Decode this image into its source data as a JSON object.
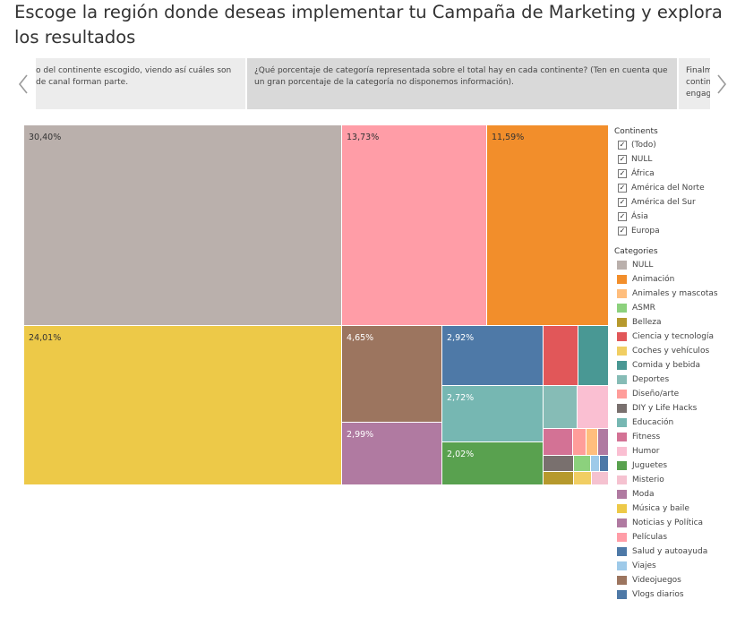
{
  "page": {
    "title": "Escoge la región donde deseas implementar tu Campaña de Marketing y explora los resultados"
  },
  "story": {
    "points": [
      {
        "text": "o del continente escogido, viendo así cuáles son\nde canal forman parte."
      },
      {
        "text": "¿Qué porcentaje de categoría representada sobre el total hay en cada continente? (Ten en cuenta que un gran porcentaje de la categoría no disponemos información)."
      },
      {
        "text": "Finalm\ncontin\nengage"
      }
    ]
  },
  "treemap": {
    "tiles": [
      {
        "name": "NULL",
        "label": "30,40%",
        "color": "#bab0ac",
        "text": "dark"
      },
      {
        "name": "Películas",
        "label": "13,73%",
        "color": "#ff9da7",
        "text": "dark"
      },
      {
        "name": "Animación",
        "label": "11,59%",
        "color": "#f28e2b",
        "text": "dark"
      },
      {
        "name": "Música y baile",
        "label": "24,01%",
        "color": "#edc948",
        "text": "dark"
      },
      {
        "name": "Videojuegos",
        "label": "4,65%",
        "color": "#9c755f",
        "text": "light"
      },
      {
        "name": "Noticias y Política",
        "label": "2,99%",
        "color": "#b07aa1",
        "text": "light"
      },
      {
        "name": "Salud y autoayuda",
        "label": "2,92%",
        "color": "#4e79a7",
        "text": "light"
      },
      {
        "name": "Educación",
        "label": "2,72%",
        "color": "#76b7b2",
        "text": "light"
      },
      {
        "name": "Juguetes",
        "label": "2,02%",
        "color": "#59a14f",
        "text": "light"
      },
      {
        "name": "Ciencia y tecnología",
        "label": "",
        "color": "#e15759",
        "text": "light"
      },
      {
        "name": "Comida y bebida",
        "label": "",
        "color": "#499894",
        "text": "light"
      },
      {
        "name": "Deportes",
        "label": "",
        "color": "#86bcb6",
        "text": "light"
      },
      {
        "name": "Humor",
        "label": "",
        "color": "#fabfd2",
        "text": "light"
      },
      {
        "name": "Fitness",
        "label": "",
        "color": "#d37295",
        "text": "light"
      },
      {
        "name": "Diseño/arte",
        "label": "",
        "color": "#ff9d9a",
        "text": "light"
      },
      {
        "name": "Animales y mascotas",
        "label": "",
        "color": "#ffbe7d",
        "text": "light"
      },
      {
        "name": "Moda",
        "label": "",
        "color": "#b07aa1",
        "text": "light"
      },
      {
        "name": "DIY y Life Hacks",
        "label": "",
        "color": "#79706e",
        "text": "light"
      },
      {
        "name": "ASMR",
        "label": "",
        "color": "#8cd17d",
        "text": "light"
      },
      {
        "name": "Viajes",
        "label": "",
        "color": "#9ecae9",
        "text": "light"
      },
      {
        "name": "Vlogs diarios",
        "label": "",
        "color": "#4e79a7",
        "text": "light"
      },
      {
        "name": "Belleza",
        "label": "",
        "color": "#b6992d",
        "text": "light"
      },
      {
        "name": "Coches y vehículos",
        "label": "",
        "color": "#f1ce63",
        "text": "light"
      },
      {
        "name": "Misterio",
        "label": "",
        "color": "#f5c2d0",
        "text": "light"
      }
    ]
  },
  "legend": {
    "continents_title": "Continents",
    "continents": [
      {
        "label": "(Todo)",
        "checked": true
      },
      {
        "label": "NULL",
        "checked": true
      },
      {
        "label": "África",
        "checked": true
      },
      {
        "label": "América del Norte",
        "checked": true
      },
      {
        "label": "América del Sur",
        "checked": true
      },
      {
        "label": "Ásia",
        "checked": true
      },
      {
        "label": "Europa",
        "checked": true
      }
    ],
    "categories_title": "Categories",
    "categories": [
      {
        "label": "NULL",
        "color": "#bab0ac"
      },
      {
        "label": "Animación",
        "color": "#f28e2b"
      },
      {
        "label": "Animales y mascotas",
        "color": "#ffbe7d"
      },
      {
        "label": "ASMR",
        "color": "#8cd17d"
      },
      {
        "label": "Belleza",
        "color": "#b6992d"
      },
      {
        "label": "Ciencia y tecnología",
        "color": "#e15759"
      },
      {
        "label": "Coches y vehículos",
        "color": "#f1ce63"
      },
      {
        "label": "Comida y bebida",
        "color": "#499894"
      },
      {
        "label": "Deportes",
        "color": "#86bcb6"
      },
      {
        "label": "Diseño/arte",
        "color": "#ff9d9a"
      },
      {
        "label": "DIY y Life Hacks",
        "color": "#79706e"
      },
      {
        "label": "Educación",
        "color": "#76b7b2"
      },
      {
        "label": "Fitness",
        "color": "#d37295"
      },
      {
        "label": "Humor",
        "color": "#fabfd2"
      },
      {
        "label": "Juguetes",
        "color": "#59a14f"
      },
      {
        "label": "Misterio",
        "color": "#f5c2d0"
      },
      {
        "label": "Moda",
        "color": "#b07aa1"
      },
      {
        "label": "Música y baile",
        "color": "#edc948"
      },
      {
        "label": "Noticias y Política",
        "color": "#b07aa1"
      },
      {
        "label": "Películas",
        "color": "#ff9da7"
      },
      {
        "label": "Salud y autoayuda",
        "color": "#4e79a7"
      },
      {
        "label": "Viajes",
        "color": "#9ecae9"
      },
      {
        "label": "Videojuegos",
        "color": "#9c755f"
      },
      {
        "label": "Vlogs diarios",
        "color": "#4e79a7"
      }
    ]
  }
}
